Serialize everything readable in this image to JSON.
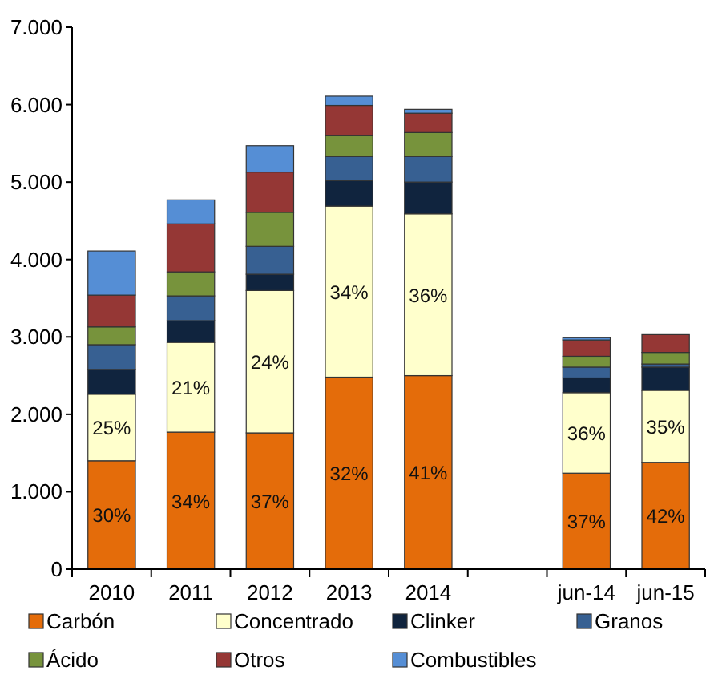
{
  "chart_data": {
    "type": "bar",
    "stacked": true,
    "categories": [
      "2010",
      "2011",
      "2012",
      "2013",
      "2014",
      null,
      "jun-14",
      "jun-15"
    ],
    "series": [
      {
        "name": "Carbón",
        "color": "#e46c0a",
        "values": [
          1400,
          1770,
          1760,
          2480,
          2500,
          null,
          1240,
          1380
        ]
      },
      {
        "name": "Concentrado",
        "color": "#ffffcc",
        "values": [
          860,
          1160,
          1840,
          2210,
          2090,
          null,
          1040,
          930
        ]
      },
      {
        "name": "Clinker",
        "color": "#10243e",
        "values": [
          320,
          280,
          210,
          330,
          410,
          null,
          190,
          300
        ]
      },
      {
        "name": "Granos",
        "color": "#376092",
        "values": [
          320,
          320,
          360,
          310,
          330,
          null,
          140,
          40
        ]
      },
      {
        "name": "Ácido",
        "color": "#77933c",
        "values": [
          230,
          310,
          440,
          270,
          310,
          null,
          140,
          150
        ]
      },
      {
        "name": "Otros",
        "color": "#953735",
        "values": [
          410,
          620,
          520,
          390,
          250,
          null,
          210,
          230
        ]
      },
      {
        "name": "Combustibles",
        "color": "#558ed5",
        "values": [
          570,
          310,
          340,
          120,
          50,
          null,
          30,
          null
        ]
      }
    ],
    "ylim": [
      0,
      7000
    ],
    "yticks": [
      {
        "value": 0,
        "label": "0"
      },
      {
        "value": 1000,
        "label": "1.000"
      },
      {
        "value": 2000,
        "label": "2.000"
      },
      {
        "value": 3000,
        "label": "3.000"
      },
      {
        "value": 4000,
        "label": "4.000"
      },
      {
        "value": 5000,
        "label": "5.000"
      },
      {
        "value": 6000,
        "label": "6.000"
      },
      {
        "value": 7000,
        "label": "7.000"
      }
    ],
    "annotations": [
      "30%",
      "34%",
      "37%",
      "32%",
      "41%",
      "37%",
      "42%",
      "25%",
      "21%",
      "24%",
      "34%",
      "36%",
      "36%",
      "35%"
    ],
    "legend": "bottom",
    "grid": false
  }
}
